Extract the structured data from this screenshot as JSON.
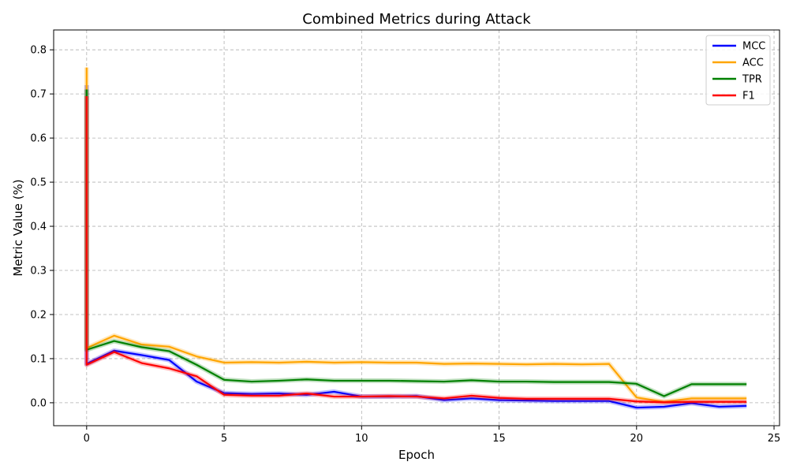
{
  "chart_data": {
    "type": "line",
    "title": "Combined Metrics during Attack",
    "xlabel": "Epoch",
    "ylabel": "Metric Value (%)",
    "xlim": [
      -1.2,
      25.2
    ],
    "ylim": [
      -0.052,
      0.845
    ],
    "xticks": [
      0,
      5,
      10,
      15,
      20,
      25
    ],
    "yticks": [
      0.0,
      0.1,
      0.2,
      0.3,
      0.4,
      0.5,
      0.6,
      0.7,
      0.8
    ],
    "ytick_labels": [
      "0.0",
      "0.1",
      "0.2",
      "0.3",
      "0.4",
      "0.5",
      "0.6",
      "0.7",
      "0.8"
    ],
    "grid": true,
    "legend_position": "top-right",
    "series": [
      {
        "name": "MCC",
        "color": "#0000ff",
        "x": [
          0,
          0,
          1,
          2,
          3,
          4,
          5,
          6,
          7,
          8,
          9,
          10,
          11,
          12,
          13,
          14,
          15,
          16,
          17,
          18,
          19,
          20,
          21,
          22,
          23,
          24
        ],
        "y": [
          0.72,
          0.088,
          0.118,
          0.108,
          0.097,
          0.048,
          0.022,
          0.02,
          0.021,
          0.018,
          0.025,
          0.014,
          0.014,
          0.015,
          0.006,
          0.01,
          0.006,
          0.005,
          0.004,
          0.004,
          0.004,
          -0.011,
          -0.009,
          -0.001,
          -0.009,
          -0.007
        ]
      },
      {
        "name": "ACC",
        "color": "#ffa500",
        "x": [
          0,
          0,
          1,
          2,
          3,
          4,
          5,
          6,
          7,
          8,
          9,
          10,
          11,
          12,
          13,
          14,
          15,
          16,
          17,
          18,
          19,
          20,
          21,
          22,
          23,
          24
        ],
        "y": [
          0.76,
          0.124,
          0.152,
          0.132,
          0.127,
          0.105,
          0.091,
          0.092,
          0.091,
          0.093,
          0.091,
          0.092,
          0.091,
          0.091,
          0.088,
          0.089,
          0.088,
          0.087,
          0.088,
          0.087,
          0.088,
          0.012,
          0.002,
          0.01,
          0.01,
          0.01
        ]
      },
      {
        "name": "TPR",
        "color": "#008000",
        "x": [
          0,
          0,
          1,
          2,
          3,
          4,
          5,
          6,
          7,
          8,
          9,
          10,
          11,
          12,
          13,
          14,
          15,
          16,
          17,
          18,
          19,
          20,
          21,
          22,
          23,
          24
        ],
        "y": [
          0.71,
          0.12,
          0.14,
          0.126,
          0.117,
          0.086,
          0.052,
          0.048,
          0.05,
          0.053,
          0.05,
          0.05,
          0.05,
          0.049,
          0.048,
          0.051,
          0.048,
          0.048,
          0.047,
          0.047,
          0.047,
          0.043,
          0.015,
          0.042,
          0.042,
          0.042
        ]
      },
      {
        "name": "F1",
        "color": "#ff0000",
        "x": [
          0,
          0,
          1,
          2,
          3,
          4,
          5,
          6,
          7,
          8,
          9,
          10,
          11,
          12,
          13,
          14,
          15,
          16,
          17,
          18,
          19,
          20,
          21,
          22,
          23,
          24
        ],
        "y": [
          0.695,
          0.086,
          0.115,
          0.09,
          0.078,
          0.06,
          0.018,
          0.016,
          0.016,
          0.021,
          0.014,
          0.014,
          0.015,
          0.014,
          0.01,
          0.016,
          0.011,
          0.009,
          0.009,
          0.009,
          0.009,
          0.003,
          0.001,
          0.002,
          0.002,
          0.002
        ]
      }
    ]
  }
}
